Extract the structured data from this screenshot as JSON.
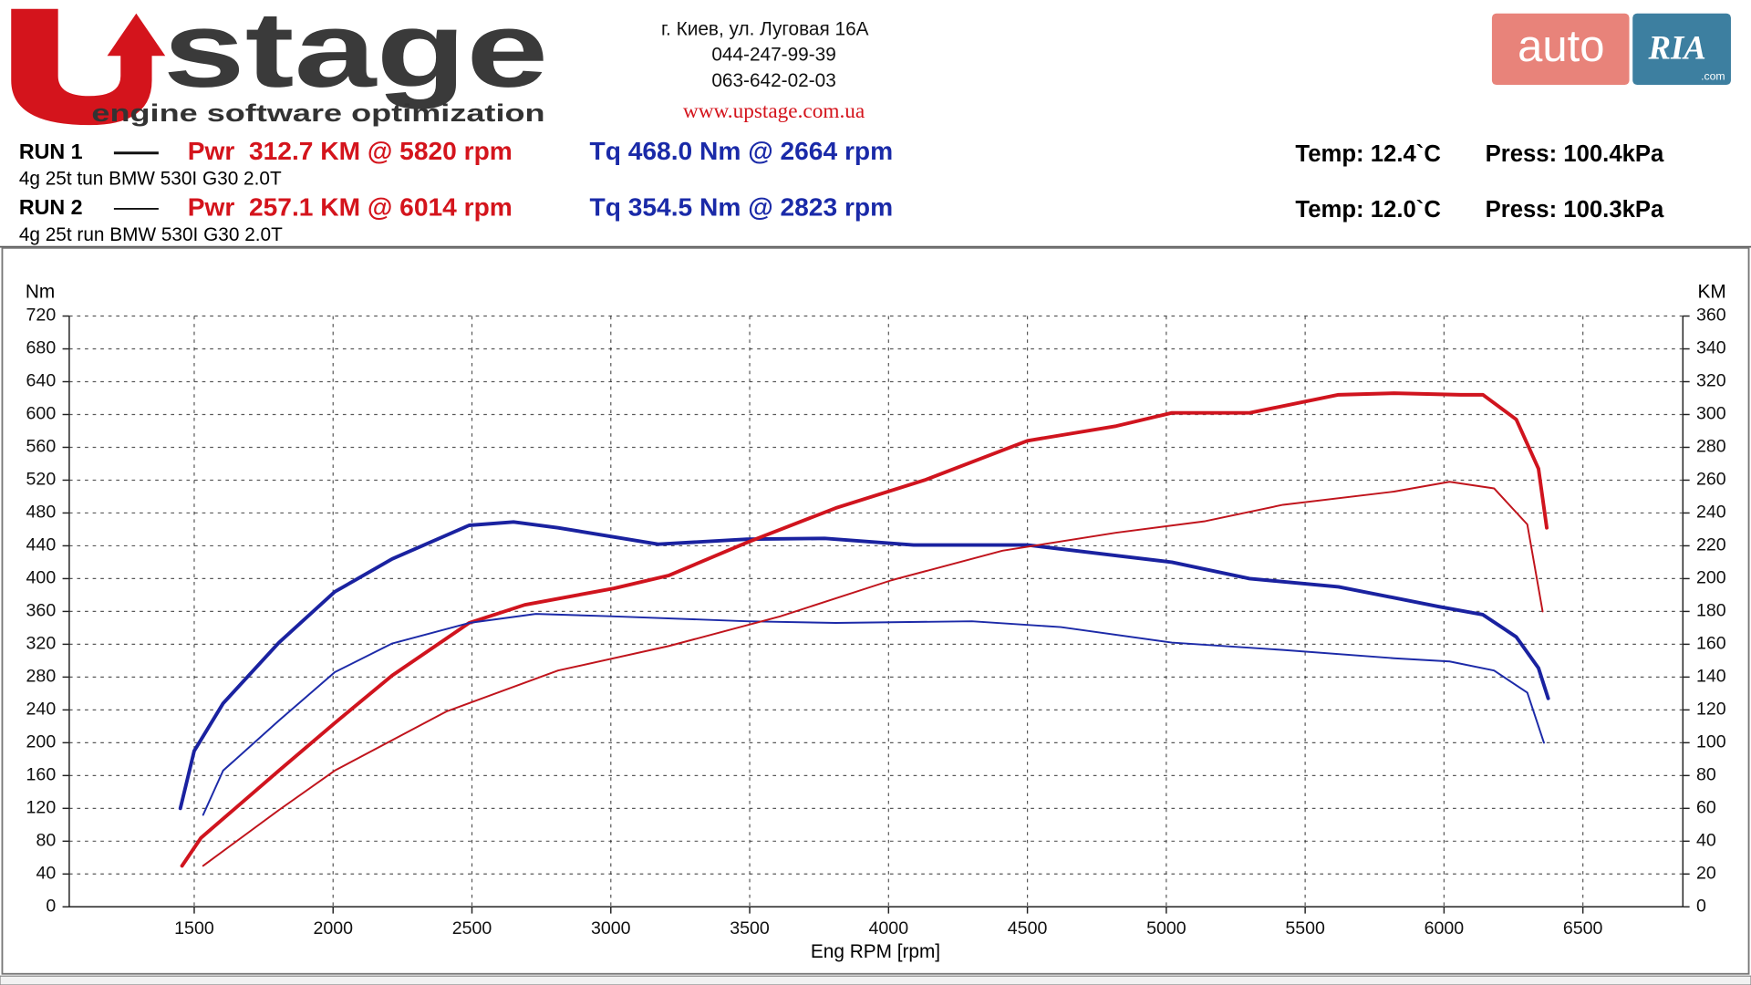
{
  "header": {
    "logo_text": "stage",
    "logo_tagline": "engine software optimization",
    "address": [
      "г. Киев, ул. Луговая 16А",
      "044-247-99-39",
      "063-642-02-03"
    ],
    "website": "www.upstage.com.ua",
    "partner_logo": {
      "left": "auto",
      "right": "RIA",
      "suffix": ".com"
    },
    "runs": [
      {
        "label": "RUN 1",
        "power": "Pwr  312.7 KM @ 5820 rpm",
        "torque": "Tq 468.0 Nm @ 2664 rpm",
        "description": "4g 25t tun BMW 530I G30 2.0T",
        "temp": "Temp: 12.4`C",
        "press": "Press: 100.4kPa"
      },
      {
        "label": "RUN 2",
        "power": "Pwr  257.1 KM @ 6014 rpm",
        "torque": "Tq 354.5 Nm @ 2823 rpm",
        "description": "4g 25t run BMW 530I G30 2.0T",
        "temp": "Temp: 12.0`C",
        "press": "Press: 100.3kPa"
      }
    ]
  },
  "chart_data": {
    "type": "line",
    "xlabel": "Eng RPM [rpm]",
    "ylabel": "Nm",
    "y2label": "KM",
    "xlim": [
      1050,
      6860
    ],
    "xticks": [
      1500,
      2000,
      2500,
      3000,
      3500,
      4000,
      4500,
      5000,
      5500,
      6000,
      6500
    ],
    "ylim": [
      0,
      720
    ],
    "yticks": [
      0,
      40,
      80,
      120,
      160,
      200,
      240,
      280,
      320,
      360,
      400,
      440,
      480,
      520,
      560,
      600,
      640,
      680,
      720
    ],
    "y2lim": [
      0,
      360
    ],
    "y2ticks": [
      0,
      20,
      40,
      60,
      80,
      100,
      120,
      140,
      160,
      180,
      200,
      220,
      240,
      260,
      280,
      300,
      320,
      340,
      360
    ],
    "grid": true,
    "series": [
      {
        "color": "#1a22a0",
        "x": [
          1450,
          1500,
          1604,
          1805,
          2006,
          2213,
          2490,
          2650,
          2810,
          3170,
          3490,
          3770,
          4090,
          4500,
          4820,
          5020,
          5300,
          5620,
          5980,
          6140,
          6260,
          6340,
          6375
        ],
        "values": [
          120,
          190,
          248,
          322,
          384,
          424,
          465,
          469,
          462,
          442,
          448,
          449,
          441,
          441,
          428,
          420,
          400,
          390,
          366,
          356,
          329,
          291,
          254
        ]
      },
      {
        "color": "#d0141e",
        "axis": "y2",
        "x": [
          1456,
          1524,
          1805,
          2006,
          2213,
          2490,
          2690,
          3010,
          3210,
          3490,
          3810,
          4130,
          4500,
          4820,
          5020,
          5300,
          5620,
          5820,
          6060,
          6140,
          6260,
          6340,
          6370
        ],
        "values": [
          25,
          42,
          83,
          112,
          141,
          173,
          184,
          194,
          202,
          222,
          243,
          260,
          284,
          293,
          301,
          301,
          312,
          313,
          312,
          312,
          297,
          267,
          231
        ]
      },
      {
        "color": "#1c2aa8",
        "x": [
          1532,
          1604,
          1805,
          2006,
          2213,
          2490,
          2730,
          3010,
          3490,
          3810,
          4300,
          4620,
          5020,
          5420,
          5820,
          6020,
          6180,
          6300,
          6360
        ],
        "values": [
          112,
          166,
          227,
          286,
          321,
          346,
          357,
          354,
          348,
          346,
          348,
          341,
          322,
          313,
          303,
          299,
          288,
          261,
          200
        ]
      },
      {
        "color": "#c0141c",
        "axis": "y2",
        "x": [
          1532,
          1805,
          2006,
          2408,
          2810,
          3210,
          3610,
          4010,
          4410,
          4820,
          5140,
          5420,
          5820,
          6020,
          6180,
          6300,
          6355
        ],
        "values": [
          25,
          59,
          83,
          119,
          144,
          159,
          177,
          199,
          217,
          228,
          235,
          245,
          253,
          259,
          255,
          233,
          180
        ]
      }
    ]
  }
}
